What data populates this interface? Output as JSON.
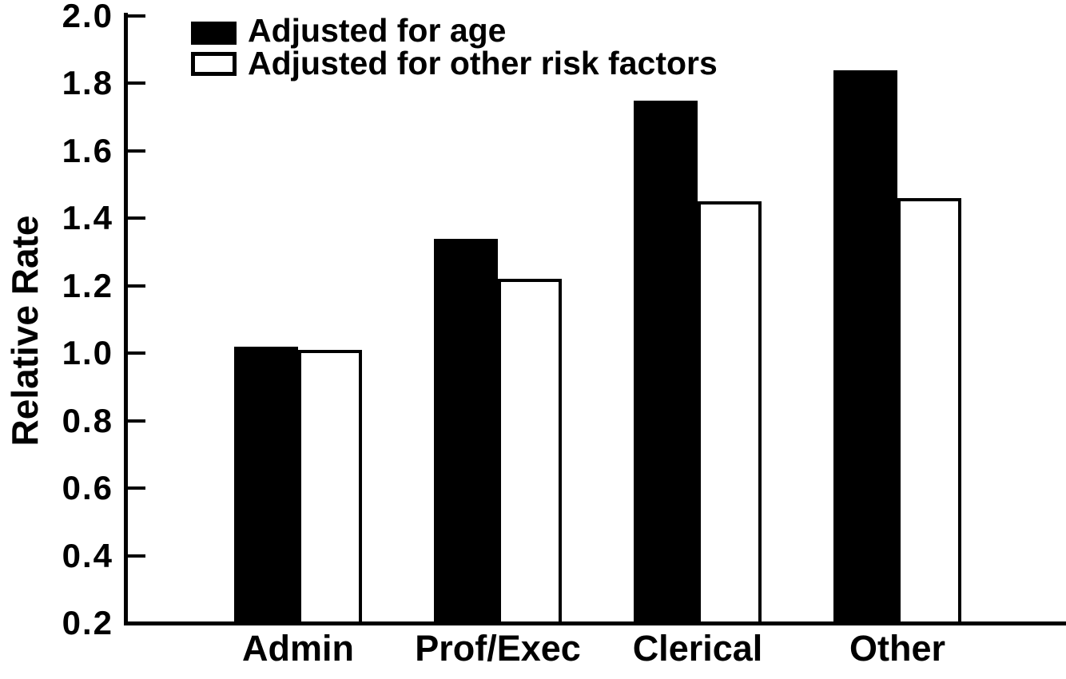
{
  "chart_data": {
    "type": "bar",
    "title": "",
    "xlabel": "",
    "ylabel": "Relative Rate",
    "categories": [
      "Admin",
      "Prof/Exec",
      "Clerical",
      "Other"
    ],
    "series": [
      {
        "name": "Adjusted for age",
        "color": "#000000",
        "values": [
          1.02,
          1.34,
          1.75,
          1.84
        ]
      },
      {
        "name": "Adjusted for other risk factors",
        "color": "#ffffff",
        "values": [
          1.01,
          1.22,
          1.45,
          1.46
        ]
      }
    ],
    "ylim": [
      0.2,
      2.0
    ],
    "ytick_step": 0.2,
    "ytick_labels": [
      "2.0",
      "1.8",
      "1.6",
      "1.4",
      "1.2",
      "1.0",
      "0.8",
      "0.6",
      "0.4",
      "0.2"
    ],
    "grid": false,
    "legend_position": "top-left",
    "bar_baseline": 0.2,
    "ink_color": "#000000",
    "paper_color": "#ffffff"
  }
}
